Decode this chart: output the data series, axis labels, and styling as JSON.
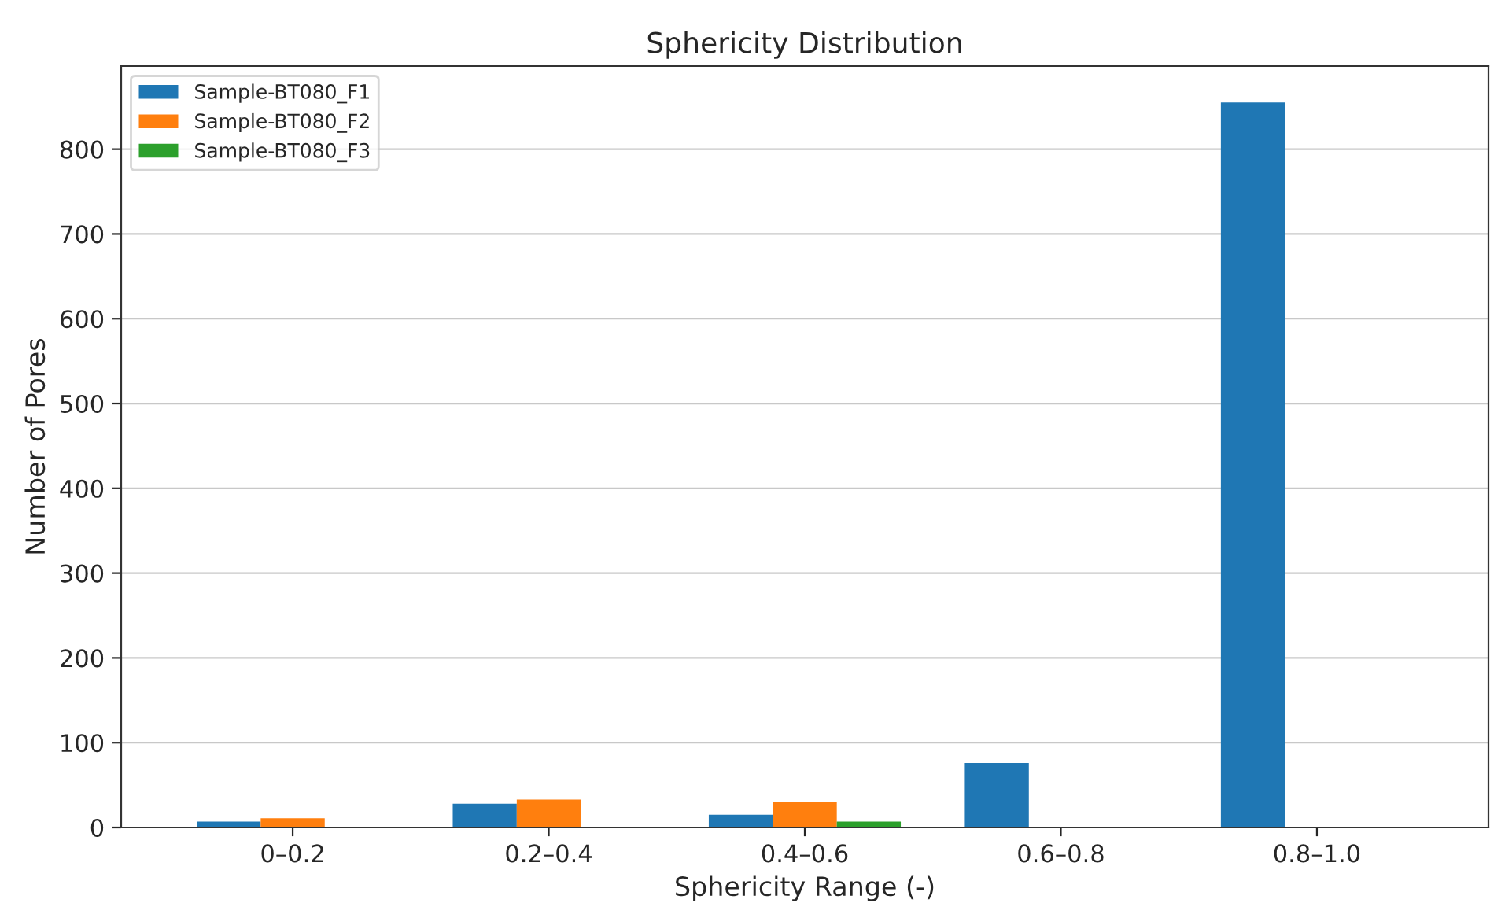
{
  "chart_data": {
    "type": "bar",
    "title": "Sphericity Distribution",
    "xlabel": "Sphericity Range (-)",
    "ylabel": "Number of Pores",
    "categories": [
      "0–0.2",
      "0.2–0.4",
      "0.4–0.6",
      "0.6–0.8",
      "0.8–1.0"
    ],
    "series": [
      {
        "name": "Sample-BT080_F1",
        "color": "#1f77b4",
        "values": [
          7,
          28,
          15,
          76,
          855
        ]
      },
      {
        "name": "Sample-BT080_F2",
        "color": "#ff7f0e",
        "values": [
          11,
          33,
          30,
          1,
          null
        ]
      },
      {
        "name": "Sample-BT080_F3",
        "color": "#2ca02c",
        "values": [
          null,
          null,
          7,
          1,
          null
        ]
      }
    ],
    "ylim": [
      0,
      898
    ],
    "yticks": [
      0,
      100,
      200,
      300,
      400,
      500,
      600,
      700,
      800
    ],
    "grid": "y",
    "legend": "top left"
  }
}
